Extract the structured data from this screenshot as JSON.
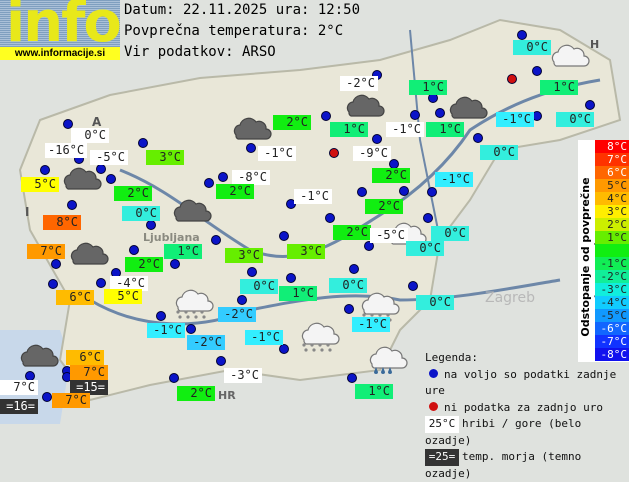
{
  "header": {
    "logo_text": "info",
    "logo_url": "www.informacije.si",
    "date_line": "Datum: 22.11.2025 ura: 12:50",
    "avg_line": "Povprečna temperatura: 2°C",
    "source_line": "Vir podatkov: ARSO"
  },
  "colors": {
    "station": "#0b14c8",
    "no_data": "#d01010"
  },
  "map_labels": {
    "austria": "A",
    "italy": "I",
    "hungary": "H",
    "croatia": "HR",
    "ljubljana": "Ljubljana",
    "zagreb": "Zagreb"
  },
  "stations": [
    {
      "t": "0°C",
      "bg": "#ffffff"
    },
    {
      "t": "-16°C",
      "bg": "#ffffff"
    },
    {
      "t": "-5°C",
      "bg": "#ffffff"
    },
    {
      "t": "5°C",
      "bg": "#ffff00"
    },
    {
      "t": "3°C",
      "bg": "#66ee00"
    },
    {
      "t": "2°C",
      "bg": "#11ee11"
    },
    {
      "t": "0°C",
      "bg": "#33eedd"
    },
    {
      "t": "8°C",
      "bg": "#ff6600"
    },
    {
      "t": "7°C",
      "bg": "#ff9900"
    },
    {
      "t": "2°C",
      "bg": "#11ee11"
    },
    {
      "t": "1°C",
      "bg": "#11ee77"
    },
    {
      "t": "-4°C",
      "bg": "#ffffff"
    },
    {
      "t": "6°C",
      "bg": "#ffbb00"
    },
    {
      "t": "5°C",
      "bg": "#ffff00"
    },
    {
      "t": "2°C",
      "bg": "#11ee11"
    },
    {
      "t": "-1°C",
      "bg": "#ffffff"
    },
    {
      "t": "-8°C",
      "bg": "#ffffff"
    },
    {
      "t": "2°C",
      "bg": "#11ee11"
    },
    {
      "t": "-1°C",
      "bg": "#ffffff"
    },
    {
      "t": "3°C",
      "bg": "#66ee00"
    },
    {
      "t": "3°C",
      "bg": "#66ee00"
    },
    {
      "t": "0°C",
      "bg": "#33eedd"
    },
    {
      "t": "1°C",
      "bg": "#11ee77"
    },
    {
      "t": "-2°C",
      "bg": "#ffffff"
    },
    {
      "t": "1°C",
      "bg": "#11ee77"
    },
    {
      "t": "1°C",
      "bg": "#11ee77"
    },
    {
      "t": "-1°C",
      "bg": "#ffffff"
    },
    {
      "t": "1°C",
      "bg": "#11ee77"
    },
    {
      "t": "-9°C",
      "bg": "#ffffff"
    },
    {
      "t": "2°C",
      "bg": "#11ee11"
    },
    {
      "t": "0°C",
      "bg": "#33eedd"
    },
    {
      "t": "-1°C",
      "bg": "#33eeff"
    },
    {
      "t": "0°C",
      "bg": "#33eedd"
    },
    {
      "t": "1°C",
      "bg": "#11ee77"
    },
    {
      "t": "-1°C",
      "bg": "#33eeff"
    },
    {
      "t": "0°C",
      "bg": "#33eedd"
    },
    {
      "t": "2°C",
      "bg": "#11ee11"
    },
    {
      "t": "2°C",
      "bg": "#11ee11"
    },
    {
      "t": "-5°C",
      "bg": "#ffffff"
    },
    {
      "t": "0°C",
      "bg": "#33eedd"
    },
    {
      "t": "0°C",
      "bg": "#33eedd"
    },
    {
      "t": "0°C",
      "bg": "#33eedd"
    },
    {
      "t": "0°C",
      "bg": "#33eedd"
    },
    {
      "t": "-2°C",
      "bg": "#33ccff"
    },
    {
      "t": "-1°C",
      "bg": "#33eeff"
    },
    {
      "t": "-2°C",
      "bg": "#33ccff"
    },
    {
      "t": "-1°C",
      "bg": "#33eeff"
    },
    {
      "t": "-1°C",
      "bg": "#33eeff"
    },
    {
      "t": "6°C",
      "bg": "#ffbb00"
    },
    {
      "t": "7°C",
      "bg": "#ff9900"
    },
    {
      "t": "=15=",
      "bg": "#333333"
    },
    {
      "t": "7°C",
      "bg": "#ffffff"
    },
    {
      "t": "=16=",
      "bg": "#333333"
    },
    {
      "t": "7°C",
      "bg": "#ff9900"
    },
    {
      "t": "-3°C",
      "bg": "#ffffff"
    },
    {
      "t": "2°C",
      "bg": "#11ee11"
    },
    {
      "t": "1°C",
      "bg": "#11ee77"
    }
  ],
  "scale": {
    "title": "Odstopanje od povprečne temperature:",
    "rows": [
      {
        "t": "8°C",
        "c": "#ff0000"
      },
      {
        "t": "7°C",
        "c": "#ff3300"
      },
      {
        "t": "6°C",
        "c": "#ff6600"
      },
      {
        "t": "5°C",
        "c": "#ff9900"
      },
      {
        "t": "4°C",
        "c": "#ffbb00"
      },
      {
        "t": "3°C",
        "c": "#ffee00"
      },
      {
        "t": "2°C",
        "c": "#ccee00"
      },
      {
        "t": "1°C",
        "c": "#66ee00"
      },
      {
        "t": "",
        "c": "#11ee11"
      },
      {
        "t": "-1°C",
        "c": "#11ee55"
      },
      {
        "t": "-2°C",
        "c": "#11ee99"
      },
      {
        "t": "-3°C",
        "c": "#11eedd"
      },
      {
        "t": "-4°C",
        "c": "#11ccff"
      },
      {
        "t": "-5°C",
        "c": "#1199ff"
      },
      {
        "t": "-6°C",
        "c": "#1166ff"
      },
      {
        "t": "-7°C",
        "c": "#1133ff"
      },
      {
        "t": "-8°C",
        "c": "#1111ee"
      }
    ]
  },
  "legend": {
    "title": "Legenda:",
    "available": "na voljo so podatki zadnje ure",
    "no_data": "ni podatka za zadnjo uro",
    "mountain_sample": "25°C",
    "mountain_text": "hribi / gore (belo ozadje)",
    "sea_sample": "=25=",
    "sea_text": "temp. morja (temno ozadje)"
  }
}
